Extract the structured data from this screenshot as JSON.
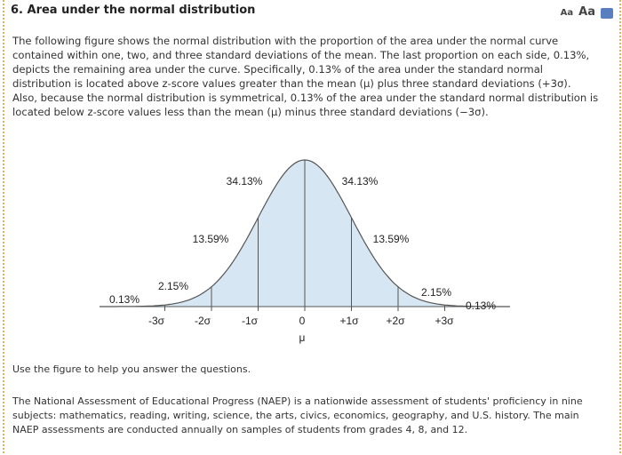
{
  "header": {
    "title": "6. Area under the normal distribution",
    "font_small": "Aa",
    "font_large": "Aa"
  },
  "intro": "The following figure shows the normal distribution with the proportion of the area under the normal curve contained within one, two, and three standard deviations of the mean. The last proportion on each side, 0.13%, depicts the remaining area under the curve. Specifically, 0.13% of the area under the standard normal distribution is located above z-score values greater than the mean (μ) plus three standard deviations (+3σ). Also, because the normal distribution is symmetrical, 0.13% of the area under the standard normal distribution is located below z-score values less than the mean (μ) minus three standard deviations (−3σ).",
  "figure": {
    "region_labels": [
      "0.13%",
      "2.15%",
      "13.59%",
      "34.13%",
      "34.13%",
      "13.59%",
      "2.15%",
      "0.13%"
    ],
    "axis_labels": [
      "-3σ",
      "-2σ",
      "-1σ",
      "0",
      "+1σ",
      "+2σ",
      "+3σ"
    ],
    "mean_label": "μ"
  },
  "instruction": "Use the figure to help you answer the questions.",
  "paragraph": "The National Assessment of Educational Progress (NAEP) is a nationwide assessment of students' proficiency in nine subjects: mathematics, reading, writing, science, the arts, civics, economics, geography, and U.S. history. The main NAEP assessments are conducted annually on samples of students from grades 4, 8, and 12."
}
